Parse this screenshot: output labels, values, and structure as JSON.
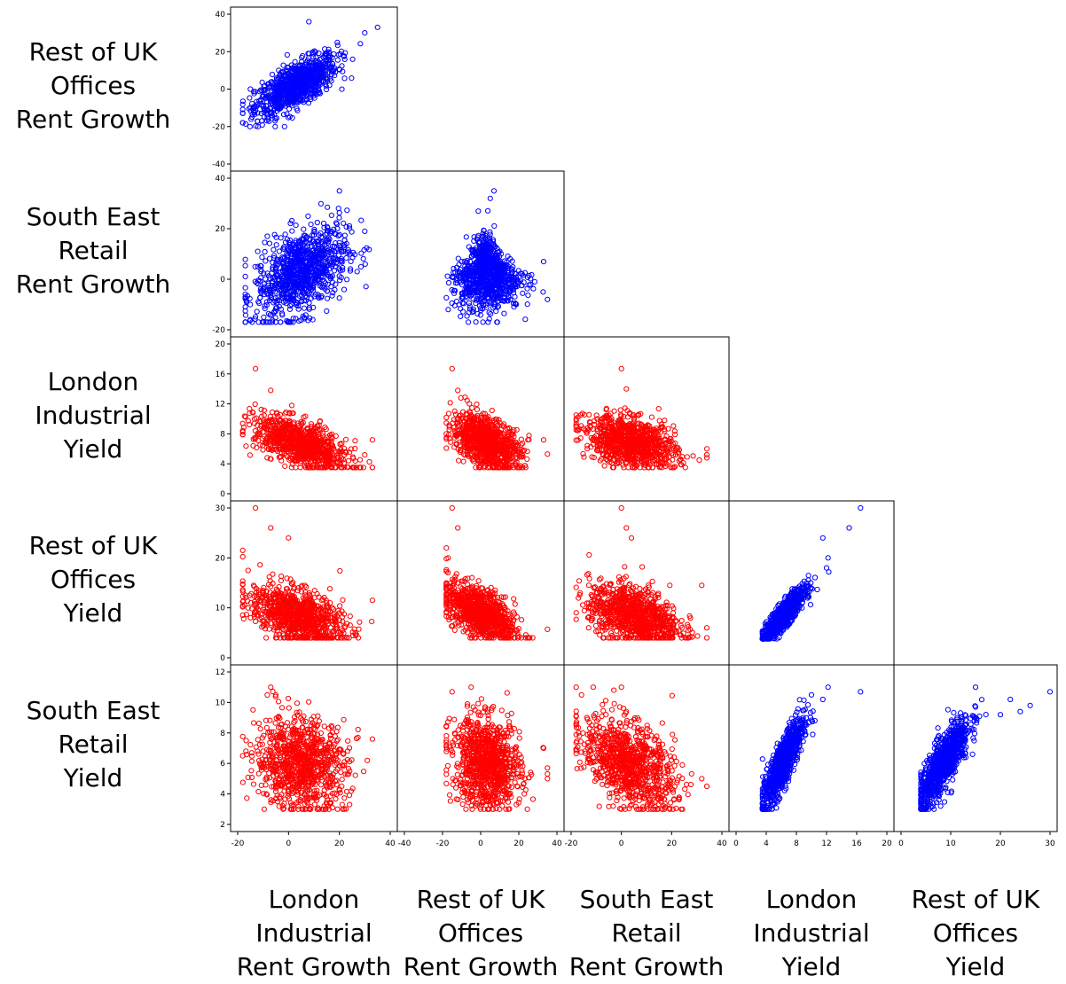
{
  "chart_data": {
    "type": "scatter",
    "layout": "lower-triangular scatterplot matrix",
    "variables": [
      "London Industrial Rent Growth",
      "Rest of UK Offices Rent Growth",
      "South East Retail Rent Growth",
      "London Industrial Yield",
      "Rest of UK Offices Yield",
      "South East Retail Yield"
    ],
    "row_labels": [
      [
        "Rest of UK",
        "Offices",
        "Rent Growth"
      ],
      [
        "South East",
        "Retail",
        "Rent Growth"
      ],
      [
        "London",
        "Industrial",
        "Yield"
      ],
      [
        "Rest of UK",
        "Offices",
        "Yield"
      ],
      [
        "South East",
        "Retail",
        "Yield"
      ]
    ],
    "col_labels": [
      [
        "London",
        "Industrial",
        "Rent Growth"
      ],
      [
        "Rest of UK",
        "Offices",
        "Rent Growth"
      ],
      [
        "South East",
        "Retail",
        "Rent Growth"
      ],
      [
        "London",
        "Industrial",
        "Yield"
      ],
      [
        "Rest of UK",
        "Offices",
        "Yield"
      ]
    ],
    "row_axes": [
      {
        "range": [
          -40,
          40
        ],
        "ticks": [
          -40,
          -20,
          0,
          20,
          40
        ]
      },
      {
        "range": [
          -20,
          40
        ],
        "ticks": [
          -20,
          0,
          20,
          40
        ]
      },
      {
        "range": [
          0,
          20
        ],
        "ticks": [
          0,
          4,
          8,
          12,
          16,
          20
        ]
      },
      {
        "range": [
          0,
          30
        ],
        "ticks": [
          0,
          10,
          20,
          30
        ]
      },
      {
        "range": [
          2,
          12
        ],
        "ticks": [
          2,
          4,
          6,
          8,
          10,
          12
        ]
      }
    ],
    "col_axes": [
      {
        "range": [
          -20,
          40
        ],
        "ticks": [
          -20,
          0,
          20,
          40
        ]
      },
      {
        "range": [
          -40,
          40
        ],
        "ticks": [
          -40,
          -20,
          0,
          20,
          40
        ]
      },
      {
        "range": [
          -20,
          40
        ],
        "ticks": [
          -20,
          0,
          20,
          40
        ]
      },
      {
        "range": [
          0,
          20
        ],
        "ticks": [
          0,
          4,
          8,
          12,
          16,
          20
        ]
      },
      {
        "range": [
          0,
          30
        ],
        "ticks": [
          0,
          10,
          20,
          30
        ]
      }
    ],
    "colors": {
      "positive": "#0000ff",
      "negative": "#ff0000"
    },
    "panels": [
      {
        "row": 0,
        "col": 0,
        "color": "positive",
        "pattern": "positive",
        "center": [
          3,
          2
        ],
        "spread": [
          8,
          8
        ],
        "corr": 0.7,
        "x_range": [
          -18,
          35
        ],
        "y_range": [
          -20,
          36
        ],
        "outliers": [
          [
            -18,
            -18
          ],
          [
            -12,
            -20
          ],
          [
            35,
            33
          ],
          [
            30,
            30
          ],
          [
            8,
            36
          ],
          [
            -15,
            0
          ]
        ]
      },
      {
        "row": 1,
        "col": 0,
        "color": "positive",
        "pattern": "positive",
        "center": [
          5,
          3
        ],
        "spread": [
          9,
          9
        ],
        "corr": 0.45,
        "x_range": [
          -17,
          33
        ],
        "y_range": [
          -17,
          35
        ],
        "outliers": [
          [
            30,
            19
          ],
          [
            27,
            3
          ],
          [
            20,
            35
          ],
          [
            -15,
            -16
          ],
          [
            -5,
            -17
          ]
        ]
      },
      {
        "row": 1,
        "col": 1,
        "color": "positive",
        "pattern": "triangle",
        "center": [
          3,
          2
        ],
        "spread": [
          9,
          7
        ],
        "corr": 0.0,
        "x_range": [
          -18,
          35
        ],
        "y_range": [
          -17,
          35
        ],
        "outliers": [
          [
            7,
            35
          ],
          [
            5,
            32
          ],
          [
            -17,
            -12
          ],
          [
            35,
            -8
          ],
          [
            33,
            7
          ]
        ]
      },
      {
        "row": 2,
        "col": 0,
        "color": "negative",
        "pattern": "negative",
        "center": [
          5,
          6.6
        ],
        "spread": [
          9,
          1.8
        ],
        "corr": -0.6,
        "x_range": [
          -18,
          33
        ],
        "y_range": [
          3.5,
          16.7
        ],
        "outliers": [
          [
            -13,
            16.7
          ],
          [
            -7,
            13.8
          ],
          [
            33,
            7.2
          ],
          [
            30,
            5.2
          ]
        ]
      },
      {
        "row": 2,
        "col": 1,
        "color": "negative",
        "pattern": "negative",
        "center": [
          3,
          7
        ],
        "spread": [
          9,
          1.8
        ],
        "corr": -0.45,
        "x_range": [
          -18,
          35
        ],
        "y_range": [
          3.5,
          16.7
        ],
        "outliers": [
          [
            -15,
            16.7
          ],
          [
            -12,
            13.8
          ],
          [
            35,
            5.3
          ],
          [
            33,
            7.2
          ]
        ]
      },
      {
        "row": 2,
        "col": 2,
        "color": "negative",
        "pattern": "negative",
        "center": [
          4,
          6.8
        ],
        "spread": [
          9,
          1.7
        ],
        "corr": -0.35,
        "x_range": [
          -18,
          34
        ],
        "y_range": [
          3.5,
          16.7
        ],
        "outliers": [
          [
            0,
            16.7
          ],
          [
            2,
            14
          ],
          [
            34,
            6
          ],
          [
            31,
            4.5
          ]
        ]
      },
      {
        "row": 3,
        "col": 0,
        "color": "negative",
        "pattern": "negative",
        "center": [
          3,
          8.5
        ],
        "spread": [
          9,
          3
        ],
        "corr": -0.45,
        "x_range": [
          -18,
          33
        ],
        "y_range": [
          4,
          30
        ],
        "outliers": [
          [
            -13,
            30
          ],
          [
            -7,
            26
          ],
          [
            -18,
            21.5
          ],
          [
            0,
            24
          ],
          [
            33,
            11.5
          ]
        ]
      },
      {
        "row": 3,
        "col": 1,
        "color": "negative",
        "pattern": "negative",
        "center": [
          0,
          9
        ],
        "spread": [
          9,
          3
        ],
        "corr": -0.55,
        "x_range": [
          -18,
          35
        ],
        "y_range": [
          4,
          30
        ],
        "outliers": [
          [
            -15,
            30
          ],
          [
            -12,
            26
          ],
          [
            -18,
            22
          ],
          [
            -17,
            20
          ],
          [
            35,
            5.7
          ]
        ]
      },
      {
        "row": 3,
        "col": 2,
        "color": "negative",
        "pattern": "negative",
        "center": [
          5,
          8.5
        ],
        "spread": [
          9,
          3
        ],
        "corr": -0.35,
        "x_range": [
          -18,
          34
        ],
        "y_range": [
          4,
          30
        ],
        "outliers": [
          [
            0,
            30
          ],
          [
            2,
            26
          ],
          [
            4,
            24
          ],
          [
            34,
            6
          ],
          [
            32,
            14.5
          ]
        ]
      },
      {
        "row": 3,
        "col": 3,
        "color": "positive",
        "pattern": "positive",
        "center": [
          6.3,
          8.5
        ],
        "spread": [
          1.4,
          2.6
        ],
        "corr": 0.88,
        "x_range": [
          3.5,
          16.7
        ],
        "y_range": [
          3.8,
          30
        ],
        "outliers": [
          [
            16.5,
            30
          ],
          [
            15,
            26
          ],
          [
            12.2,
            20
          ],
          [
            11.5,
            24
          ],
          [
            12,
            18
          ]
        ]
      },
      {
        "row": 4,
        "col": 0,
        "color": "negative",
        "pattern": "blob",
        "center": [
          5,
          6
        ],
        "spread": [
          9,
          1.5
        ],
        "corr": -0.1,
        "x_range": [
          -18,
          33
        ],
        "y_range": [
          3,
          11
        ],
        "outliers": [
          [
            -7,
            11
          ],
          [
            -5,
            10.5
          ],
          [
            33,
            7.6
          ],
          [
            31,
            6.2
          ]
        ]
      },
      {
        "row": 4,
        "col": 1,
        "color": "negative",
        "pattern": "blob",
        "center": [
          3,
          6
        ],
        "spread": [
          9,
          1.5
        ],
        "corr": -0.15,
        "x_range": [
          -18,
          35
        ],
        "y_range": [
          3,
          11
        ],
        "outliers": [
          [
            -15,
            10.7
          ],
          [
            -5,
            11
          ],
          [
            35,
            5
          ],
          [
            33,
            7
          ]
        ]
      },
      {
        "row": 4,
        "col": 2,
        "color": "negative",
        "pattern": "negative",
        "center": [
          3,
          6
        ],
        "spread": [
          9,
          1.5
        ],
        "corr": -0.45,
        "x_range": [
          -18,
          34
        ],
        "y_range": [
          3,
          11
        ],
        "outliers": [
          [
            0,
            11
          ],
          [
            -3,
            10.8
          ],
          [
            34,
            4.5
          ],
          [
            32,
            5
          ]
        ]
      },
      {
        "row": 4,
        "col": 3,
        "color": "positive",
        "pattern": "positive",
        "center": [
          6.2,
          6
        ],
        "spread": [
          1.4,
          1.5
        ],
        "corr": 0.85,
        "x_range": [
          3.5,
          16.7
        ],
        "y_range": [
          3,
          11
        ],
        "outliers": [
          [
            16.5,
            10.7
          ],
          [
            12.2,
            11
          ],
          [
            11.5,
            10.2
          ],
          [
            10,
            10.5
          ]
        ]
      },
      {
        "row": 4,
        "col": 4,
        "color": "positive",
        "pattern": "positive",
        "center": [
          8.5,
          6
        ],
        "spread": [
          2.6,
          1.5
        ],
        "corr": 0.82,
        "x_range": [
          4,
          30
        ],
        "y_range": [
          3,
          11
        ],
        "outliers": [
          [
            30,
            10.7
          ],
          [
            26,
            9.8
          ],
          [
            24,
            9.4
          ],
          [
            22,
            10.2
          ],
          [
            20,
            9.2
          ],
          [
            15,
            11
          ]
        ]
      }
    ]
  }
}
